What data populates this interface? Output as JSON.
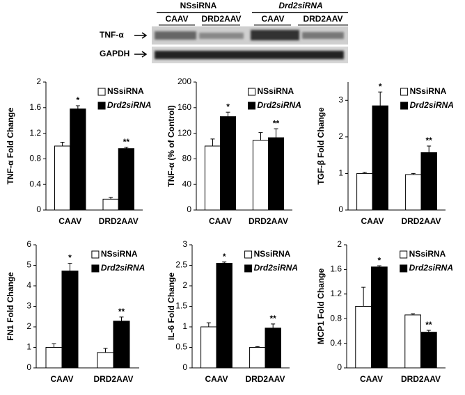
{
  "blot": {
    "groups": [
      "NSsiRNA",
      "Drd2siRNA"
    ],
    "lanes": [
      "CAAV",
      "DRD2AAV",
      "CAAV",
      "DRD2AAV"
    ],
    "rows": [
      "TNF-α",
      "GAPDH"
    ]
  },
  "chart_data": [
    {
      "type": "bar",
      "y_label": "TNF-α Fold Change",
      "categories": [
        "CAAV",
        "DRD2AAV"
      ],
      "ylim": [
        0,
        2
      ],
      "yticks": [
        0,
        0.4,
        0.8,
        1.2,
        1.6,
        2
      ],
      "series": [
        {
          "name": "NSsiRNA",
          "color": "#ffffff",
          "values": [
            1.0,
            0.17
          ],
          "errors": [
            0.06,
            0.03
          ]
        },
        {
          "name": "Drd2siRNA",
          "color": "#000000",
          "values": [
            1.58,
            0.96
          ],
          "errors": [
            0.05,
            0.02
          ]
        }
      ],
      "annotations": [
        "*",
        "**"
      ]
    },
    {
      "type": "bar",
      "y_label": "TNF-α (% of Control)",
      "categories": [
        "CAAV",
        "DRD2AAV"
      ],
      "ylim": [
        0,
        200
      ],
      "yticks": [
        0,
        40,
        80,
        120,
        160,
        200
      ],
      "series": [
        {
          "name": "NSsiRNA",
          "color": "#ffffff",
          "values": [
            100,
            109
          ],
          "errors": [
            11,
            12
          ]
        },
        {
          "name": "Drd2siRNA",
          "color": "#000000",
          "values": [
            146,
            113
          ],
          "errors": [
            7,
            14
          ]
        }
      ],
      "annotations": [
        "*",
        "**"
      ]
    },
    {
      "type": "bar",
      "y_label": "TGF-β Fold Change",
      "categories": [
        "CAAV",
        "DRD2AAV"
      ],
      "ylim": [
        0,
        3.5
      ],
      "yticks": [
        0,
        1,
        2,
        3
      ],
      "series": [
        {
          "name": "NSsiRNA",
          "color": "#ffffff",
          "values": [
            1.0,
            0.97
          ],
          "errors": [
            0.03,
            0.03
          ]
        },
        {
          "name": "Drd2siRNA",
          "color": "#000000",
          "values": [
            2.85,
            1.57
          ],
          "errors": [
            0.38,
            0.18
          ]
        }
      ],
      "annotations": [
        "*",
        "**"
      ]
    },
    {
      "type": "bar",
      "y_label": "FN1 Fold Change",
      "categories": [
        "CAAV",
        "DRD2AAV"
      ],
      "ylim": [
        0,
        6
      ],
      "yticks": [
        0,
        1,
        2,
        3,
        4,
        5,
        6
      ],
      "series": [
        {
          "name": "NSsiRNA",
          "color": "#ffffff",
          "values": [
            1.0,
            0.75
          ],
          "errors": [
            0.18,
            0.2
          ]
        },
        {
          "name": "Drd2siRNA",
          "color": "#000000",
          "values": [
            4.72,
            2.28
          ],
          "errors": [
            0.38,
            0.2
          ]
        }
      ],
      "annotations": [
        "*",
        "**"
      ]
    },
    {
      "type": "bar",
      "y_label": "IL-6 Fold Change",
      "categories": [
        "CAAV",
        "DRD2AAV"
      ],
      "ylim": [
        0,
        3
      ],
      "yticks": [
        0,
        0.5,
        1,
        1.5,
        2,
        2.5,
        3
      ],
      "series": [
        {
          "name": "NSsiRNA",
          "color": "#ffffff",
          "values": [
            1.0,
            0.5
          ],
          "errors": [
            0.1,
            0.02
          ]
        },
        {
          "name": "Drd2siRNA",
          "color": "#000000",
          "values": [
            2.55,
            0.97
          ],
          "errors": [
            0.03,
            0.1
          ]
        }
      ],
      "annotations": [
        "*",
        "**"
      ]
    },
    {
      "type": "bar",
      "y_label": "MCP1 Fold Change",
      "categories": [
        "CAAV",
        "DRD2AAV"
      ],
      "ylim": [
        0,
        2
      ],
      "yticks": [
        0,
        0.4,
        0.8,
        1.2,
        1.6,
        2
      ],
      "series": [
        {
          "name": "NSsiRNA",
          "color": "#ffffff",
          "values": [
            1.0,
            0.86
          ],
          "errors": [
            0.31,
            0.02
          ]
        },
        {
          "name": "Drd2siRNA",
          "color": "#000000",
          "values": [
            1.64,
            0.58
          ],
          "errors": [
            0.02,
            0.03
          ]
        }
      ],
      "annotations": [
        "*",
        "**"
      ]
    }
  ]
}
